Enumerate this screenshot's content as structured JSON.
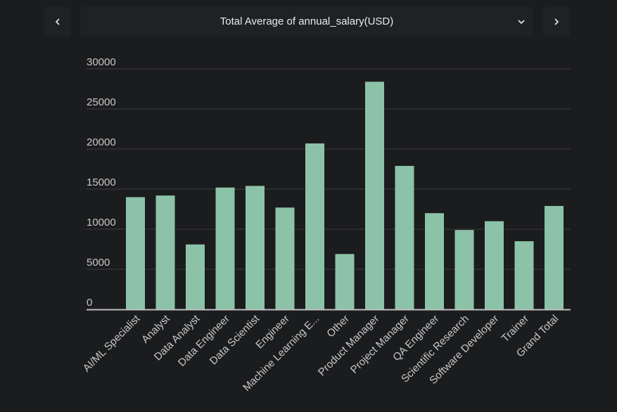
{
  "header": {
    "prev_icon": "chevron-left-icon",
    "next_icon": "chevron-right-icon",
    "dropdown_icon": "chevron-down-icon",
    "selected_metric": "Total Average of annual_salary(USD)"
  },
  "colors": {
    "background": "#1b1c1e",
    "bar": "#8cc3a8",
    "grid": "#3c3d40",
    "axis": "#bdbdbd",
    "text": "#c8c8c8"
  },
  "chart_data": {
    "type": "bar",
    "categories": [
      "AI/ML Specialist",
      "Analyst",
      "Data Analyst",
      "Data Engineer",
      "Data Scientist",
      "Engineer",
      "Machine Learning E...",
      "Other",
      "Product Manager",
      "Project Manager",
      "QA Engineer",
      "Scientific Research",
      "Software Developer",
      "Trainer",
      "Grand Total"
    ],
    "values": [
      14000,
      14200,
      8100,
      15200,
      15400,
      12700,
      20700,
      6900,
      28400,
      17900,
      12000,
      9900,
      11000,
      8500,
      12900
    ],
    "yticks": [
      "0",
      "5000",
      "10000",
      "15000",
      "20000",
      "25000",
      "30000"
    ],
    "ylim": [
      0,
      30000
    ],
    "grid": true,
    "legend": false
  }
}
